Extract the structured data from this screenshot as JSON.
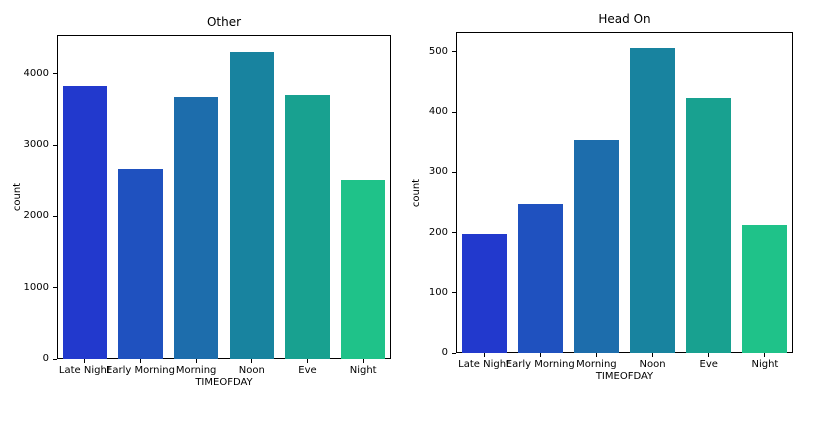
{
  "figure": {
    "background": "#ffffff",
    "palette": [
      "#2239cd",
      "#1f51bf",
      "#1d6dac",
      "#18839f",
      "#18a190",
      "#1fc289"
    ]
  },
  "chart_data": [
    {
      "type": "bar",
      "title": "Other",
      "categories": [
        "Late Night",
        "Early Morning",
        "Morning",
        "Noon",
        "Eve",
        "Night"
      ],
      "values": [
        3832,
        2667,
        3677,
        4309,
        3705,
        2512
      ],
      "xlabel": "TIMEOFDAY",
      "ylabel": "count",
      "ylim": [
        0,
        4547
      ],
      "yticks": [
        0,
        1000,
        2000,
        3000,
        4000
      ],
      "grid": false,
      "legend": null
    },
    {
      "type": "bar",
      "title": "Head On",
      "categories": [
        "Late Night",
        "Early Morning",
        "Morning",
        "Noon",
        "Eve",
        "Night"
      ],
      "values": [
        198,
        247,
        353,
        507,
        424,
        213
      ],
      "xlabel": "TIMEOFDAY",
      "ylabel": "count",
      "ylim": [
        0,
        533
      ],
      "yticks": [
        0,
        100,
        200,
        300,
        400,
        500
      ],
      "grid": false,
      "legend": null
    }
  ]
}
